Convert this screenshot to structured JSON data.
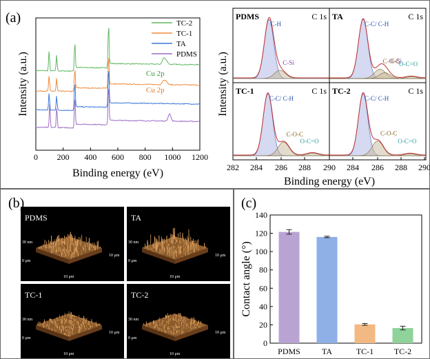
{
  "panels": {
    "a_label": "(a)",
    "b_label": "(b)",
    "c_label": "(c)"
  },
  "chart_data": [
    {
      "type": "line",
      "panel": "(a) survey",
      "xlabel": "Binding energy (eV)",
      "ylabel": "Intensity (a.u.)",
      "xlim": [
        0,
        1200
      ],
      "xticks": [
        "0",
        "200",
        "400",
        "600",
        "800",
        "1000",
        "1200"
      ],
      "legend": [
        "TC-2",
        "TC-1",
        "TA",
        "PDMS"
      ],
      "legend_position": "top-left",
      "annotations": [
        "Cu 2p",
        "Cu 2p"
      ],
      "series": [
        {
          "name": "TC-2",
          "color": "#5fb85f",
          "offset": 1.0,
          "peaks": [
            [
              97,
              0.28
            ],
            [
              152,
              0.22
            ],
            [
              285,
              0.4
            ],
            [
              532,
              0.62
            ],
            [
              935,
              0.08
            ],
            [
              955,
              0.05
            ]
          ]
        },
        {
          "name": "TC-1",
          "color": "#f08a3c",
          "offset": 0.72,
          "peaks": [
            [
              97,
              0.22
            ],
            [
              152,
              0.18
            ],
            [
              285,
              0.3
            ],
            [
              532,
              0.45
            ],
            [
              935,
              0.06
            ],
            [
              955,
              0.04
            ]
          ]
        },
        {
          "name": "TA",
          "color": "#3a78d8",
          "offset": 0.46,
          "peaks": [
            [
              97,
              0.24
            ],
            [
              152,
              0.2
            ],
            [
              285,
              0.38
            ],
            [
              532,
              0.55
            ]
          ]
        },
        {
          "name": "PDMS",
          "color": "#9b6bc4",
          "offset": 0.22,
          "peaks": [
            [
              102,
              0.34
            ],
            [
              153,
              0.3
            ],
            [
              285,
              0.42
            ],
            [
              532,
              0.55
            ],
            [
              978,
              0.1
            ]
          ]
        }
      ]
    },
    {
      "type": "line",
      "panel": "(a) C 1s high resolution",
      "xlabel": "Binding energy (eV)",
      "ylabel": "Intensity (a.u.)",
      "xlim": [
        282,
        290
      ],
      "xticks": [
        "282",
        "284",
        "286",
        "288",
        "290",
        "284",
        "286",
        "288",
        "290"
      ],
      "subplots": [
        {
          "name": "PDMS",
          "core": "C 1s",
          "peaks": [
            {
              "label": "C-H",
              "center": 285.0,
              "height": 1.0
            },
            {
              "label": "C-Si",
              "center": 285.9,
              "height": 0.14
            }
          ]
        },
        {
          "name": "TA",
          "core": "C 1s",
          "peaks": [
            {
              "label": "C-C/ C-H",
              "center": 284.8,
              "height": 1.0
            },
            {
              "label": "C-O-C",
              "center": 286.2,
              "height": 0.16
            },
            {
              "label": "C-Si",
              "center": 286.6,
              "height": 0.1
            },
            {
              "label": "O-C=O",
              "center": 288.8,
              "height": 0.03
            }
          ]
        },
        {
          "name": "TC-1",
          "core": "C 1s",
          "peaks": [
            {
              "label": "C-C/ C-H",
              "center": 284.9,
              "height": 1.0
            },
            {
              "label": "C-O-C",
              "center": 286.2,
              "height": 0.22
            },
            {
              "label": "O-C=O",
              "center": 288.6,
              "height": 0.04
            }
          ]
        },
        {
          "name": "TC-2",
          "core": "C 1s",
          "peaks": [
            {
              "label": "C-C/ C-H",
              "center": 284.8,
              "height": 1.0
            },
            {
              "label": "C-O-C",
              "center": 286.0,
              "height": 0.24
            },
            {
              "label": "O-C=O",
              "center": 288.7,
              "height": 0.03
            }
          ]
        }
      ]
    },
    {
      "type": "bar",
      "panel": "(c)",
      "categories": [
        "PDMS",
        "TA",
        "TC-1",
        "TC-2"
      ],
      "values": [
        121.5,
        116,
        20.5,
        16.5
      ],
      "errors": [
        2.5,
        0.8,
        1.0,
        2.0
      ],
      "colors": [
        "#b9a3d3",
        "#8fb0e6",
        "#f3b982",
        "#8fd29a"
      ],
      "ylabel": "Contact angle (°)",
      "ylim": [
        0,
        140
      ],
      "yticks": [
        "0",
        "20",
        "40",
        "60",
        "80",
        "100",
        "120",
        "140"
      ]
    }
  ],
  "afm": [
    {
      "name": "PDMS",
      "z_label": "30 nm",
      "base_label": "0 μm",
      "x_label": "10 μm",
      "y_label": "10 μm",
      "roughness": 1.0
    },
    {
      "name": "TA",
      "z_label": "30 nm",
      "base_label": "0 μm",
      "x_label": "10 μm",
      "y_label": "10 μm",
      "roughness": 1.3
    },
    {
      "name": "TC-1",
      "z_label": "30 nm",
      "base_label": "0 μm",
      "x_label": "10 μm",
      "y_label": "10 μm",
      "roughness": 0.55
    },
    {
      "name": "TC-2",
      "z_label": "30 nm",
      "base_label": "0 μm",
      "x_label": "10 μm",
      "y_label": "10 μm",
      "roughness": 0.45
    }
  ]
}
